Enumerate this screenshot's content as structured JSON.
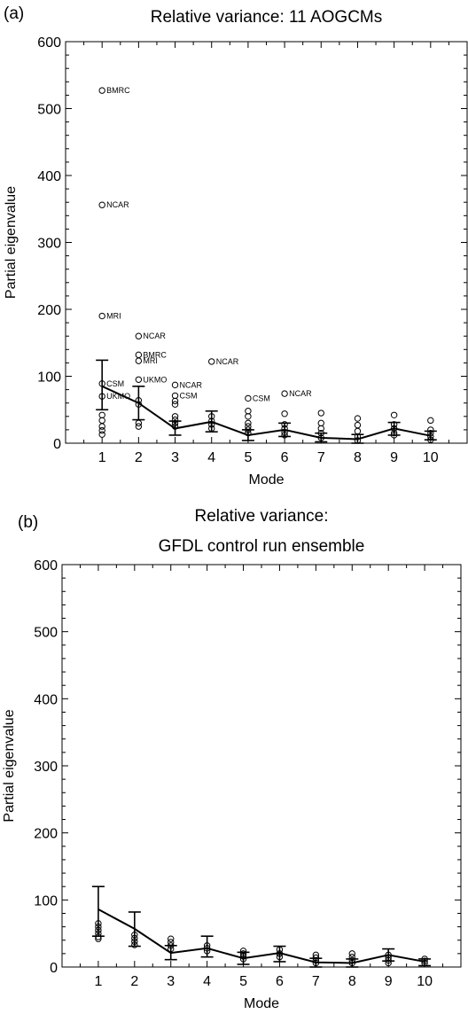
{
  "chart_data": [
    {
      "type": "scatter",
      "panel_label": "(a)",
      "title": "Relative variance: 11 AOGCMs",
      "title_lines": [
        "Relative variance: 11 AOGCMs"
      ],
      "xlabel": "Mode",
      "ylabel": "Partial eigenvalue",
      "xlim": [
        0,
        11
      ],
      "ylim": [
        0,
        600
      ],
      "xticks": [
        1,
        2,
        3,
        4,
        5,
        6,
        7,
        8,
        9,
        10
      ],
      "yticks": [
        0,
        100,
        200,
        300,
        400,
        500,
        600
      ],
      "grid": false,
      "mean": {
        "x": [
          1,
          2,
          3,
          4,
          5,
          6,
          7,
          8,
          9,
          10
        ],
        "y": [
          85,
          60,
          22,
          32,
          12,
          20,
          8,
          6,
          22,
          11
        ]
      },
      "error": {
        "x": [
          1,
          2,
          3,
          4,
          5,
          6,
          7,
          8,
          9,
          10
        ],
        "low": [
          50,
          35,
          12,
          17,
          4,
          10,
          2,
          0,
          12,
          5
        ],
        "high": [
          124,
          85,
          33,
          48,
          20,
          30,
          15,
          13,
          31,
          18
        ]
      },
      "points": [
        {
          "x": 1,
          "y": 527,
          "label": "BMRC"
        },
        {
          "x": 1,
          "y": 356,
          "label": "NCAR"
        },
        {
          "x": 1,
          "y": 190,
          "label": "MRI"
        },
        {
          "x": 1,
          "y": 89,
          "label": "CSM"
        },
        {
          "x": 1,
          "y": 70,
          "label": "UKMO"
        },
        {
          "x": 1,
          "y": 42
        },
        {
          "x": 1,
          "y": 34
        },
        {
          "x": 1,
          "y": 25
        },
        {
          "x": 1,
          "y": 19
        },
        {
          "x": 1,
          "y": 13
        },
        {
          "x": 2,
          "y": 160,
          "label": "NCAR"
        },
        {
          "x": 2,
          "y": 132,
          "label": "BMRC"
        },
        {
          "x": 2,
          "y": 123,
          "label": "MRI"
        },
        {
          "x": 2,
          "y": 95,
          "label": "UKMO"
        },
        {
          "x": 2,
          "y": 64
        },
        {
          "x": 2,
          "y": 58
        },
        {
          "x": 2,
          "y": 30
        },
        {
          "x": 2,
          "y": 25
        },
        {
          "x": 3,
          "y": 87,
          "label": "NCAR"
        },
        {
          "x": 3,
          "y": 71,
          "label": "CSM"
        },
        {
          "x": 3,
          "y": 63
        },
        {
          "x": 3,
          "y": 58
        },
        {
          "x": 3,
          "y": 40
        },
        {
          "x": 3,
          "y": 35
        },
        {
          "x": 3,
          "y": 30
        },
        {
          "x": 3,
          "y": 25
        },
        {
          "x": 4,
          "y": 122,
          "label": "NCAR"
        },
        {
          "x": 4,
          "y": 40
        },
        {
          "x": 4,
          "y": 33
        },
        {
          "x": 4,
          "y": 28
        },
        {
          "x": 4,
          "y": 22
        },
        {
          "x": 5,
          "y": 67,
          "label": "CSM"
        },
        {
          "x": 5,
          "y": 48
        },
        {
          "x": 5,
          "y": 40
        },
        {
          "x": 5,
          "y": 30
        },
        {
          "x": 5,
          "y": 25
        },
        {
          "x": 5,
          "y": 20
        },
        {
          "x": 5,
          "y": 15
        },
        {
          "x": 6,
          "y": 74,
          "label": "NCAR"
        },
        {
          "x": 6,
          "y": 44
        },
        {
          "x": 6,
          "y": 28
        },
        {
          "x": 6,
          "y": 22
        },
        {
          "x": 6,
          "y": 16
        },
        {
          "x": 6,
          "y": 12
        },
        {
          "x": 7,
          "y": 45
        },
        {
          "x": 7,
          "y": 30
        },
        {
          "x": 7,
          "y": 22
        },
        {
          "x": 7,
          "y": 15
        },
        {
          "x": 7,
          "y": 8
        },
        {
          "x": 8,
          "y": 37
        },
        {
          "x": 8,
          "y": 27
        },
        {
          "x": 8,
          "y": 18
        },
        {
          "x": 8,
          "y": 10
        },
        {
          "x": 8,
          "y": 4
        },
        {
          "x": 9,
          "y": 42
        },
        {
          "x": 9,
          "y": 28
        },
        {
          "x": 9,
          "y": 22
        },
        {
          "x": 9,
          "y": 15
        },
        {
          "x": 9,
          "y": 12
        },
        {
          "x": 10,
          "y": 34
        },
        {
          "x": 10,
          "y": 20
        },
        {
          "x": 10,
          "y": 15
        },
        {
          "x": 10,
          "y": 10
        },
        {
          "x": 10,
          "y": 5
        }
      ]
    },
    {
      "type": "scatter",
      "panel_label": "(b)",
      "title": "Relative variance: GFDL control run ensemble",
      "title_lines": [
        "Relative variance:",
        "GFDL control run ensemble"
      ],
      "xlabel": "Mode",
      "ylabel": "Partial eigenvalue",
      "xlim": [
        0,
        11
      ],
      "ylim": [
        0,
        600
      ],
      "xticks": [
        1,
        2,
        3,
        4,
        5,
        6,
        7,
        8,
        9,
        10
      ],
      "yticks": [
        0,
        100,
        200,
        300,
        400,
        500,
        600
      ],
      "grid": false,
      "mean": {
        "x": [
          1,
          2,
          3,
          4,
          5,
          6,
          7,
          8,
          9,
          10
        ],
        "y": [
          86,
          57,
          21,
          28,
          13,
          21,
          7,
          6,
          18,
          8
        ]
      },
      "error": {
        "x": [
          1,
          2,
          3,
          4,
          5,
          6,
          7,
          8,
          9,
          10
        ],
        "low": [
          46,
          31,
          11,
          15,
          4,
          8,
          0,
          0,
          9,
          2
        ],
        "high": [
          120,
          82,
          32,
          46,
          22,
          31,
          13,
          12,
          27,
          12
        ]
      },
      "points": [
        {
          "x": 1,
          "y": 65
        },
        {
          "x": 1,
          "y": 60
        },
        {
          "x": 1,
          "y": 55
        },
        {
          "x": 1,
          "y": 50
        },
        {
          "x": 1,
          "y": 45
        },
        {
          "x": 1,
          "y": 42
        },
        {
          "x": 2,
          "y": 48
        },
        {
          "x": 2,
          "y": 43
        },
        {
          "x": 2,
          "y": 38
        },
        {
          "x": 2,
          "y": 33
        },
        {
          "x": 3,
          "y": 42
        },
        {
          "x": 3,
          "y": 37
        },
        {
          "x": 3,
          "y": 32
        },
        {
          "x": 3,
          "y": 27
        },
        {
          "x": 4,
          "y": 32
        },
        {
          "x": 4,
          "y": 28
        },
        {
          "x": 4,
          "y": 24
        },
        {
          "x": 5,
          "y": 24
        },
        {
          "x": 5,
          "y": 20
        },
        {
          "x": 5,
          "y": 16
        },
        {
          "x": 5,
          "y": 12
        },
        {
          "x": 6,
          "y": 26
        },
        {
          "x": 6,
          "y": 20
        },
        {
          "x": 6,
          "y": 15
        },
        {
          "x": 7,
          "y": 18
        },
        {
          "x": 7,
          "y": 14
        },
        {
          "x": 7,
          "y": 10
        },
        {
          "x": 7,
          "y": 6
        },
        {
          "x": 8,
          "y": 20
        },
        {
          "x": 8,
          "y": 15
        },
        {
          "x": 8,
          "y": 10
        },
        {
          "x": 8,
          "y": 6
        },
        {
          "x": 9,
          "y": 18
        },
        {
          "x": 9,
          "y": 14
        },
        {
          "x": 9,
          "y": 10
        },
        {
          "x": 9,
          "y": 6
        },
        {
          "x": 10,
          "y": 12
        },
        {
          "x": 10,
          "y": 9
        },
        {
          "x": 10,
          "y": 6
        }
      ]
    }
  ]
}
